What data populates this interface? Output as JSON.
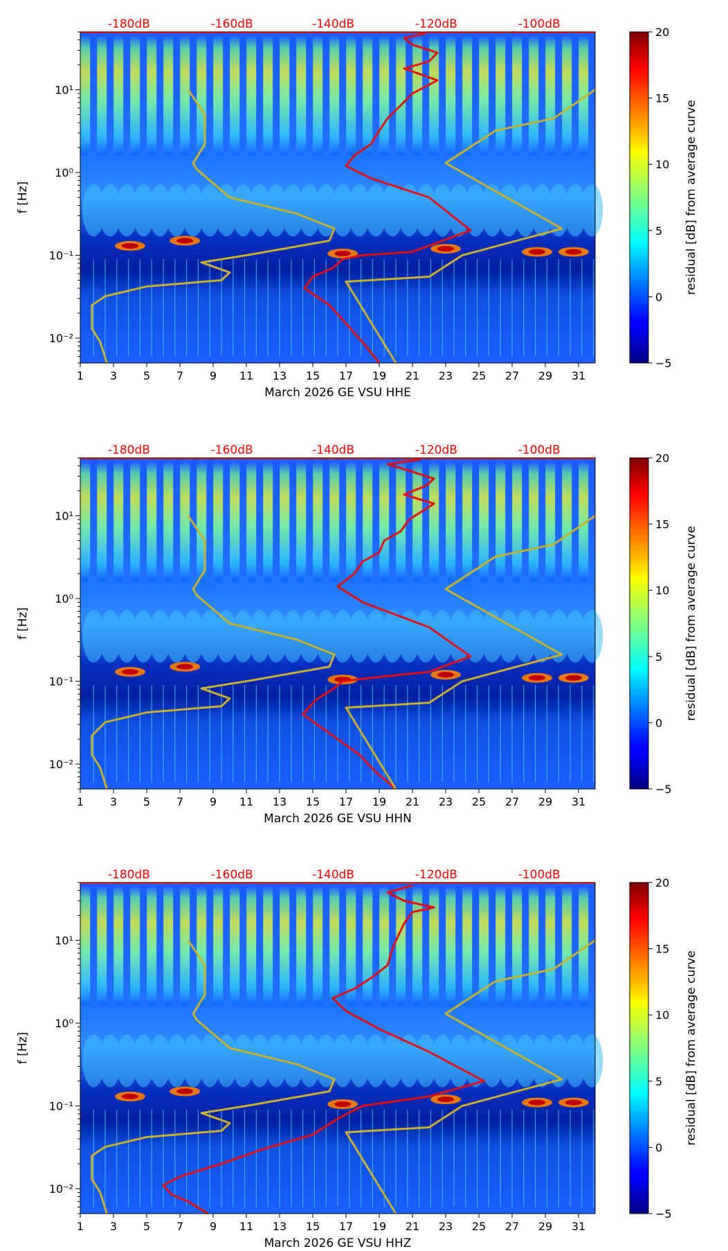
{
  "chart_data": [
    {
      "type": "heatmap",
      "xlabel": "March 2026 GE VSU  HHE",
      "ylabel": "f [Hz]",
      "colorbar_label": "residual [dB] from average curve",
      "colorbar_ticks": [
        -5,
        0,
        5,
        10,
        15,
        20
      ],
      "colorbar_range": [
        -5,
        20
      ],
      "x_ticks": [
        1,
        3,
        5,
        7,
        9,
        11,
        13,
        15,
        17,
        19,
        21,
        23,
        25,
        27,
        29,
        31
      ],
      "xlim": [
        1,
        32
      ],
      "y_ticks": [
        "10⁻²",
        "10⁻¹",
        "10⁰",
        "10¹"
      ],
      "ylim": [
        0.005,
        50
      ],
      "top_labels": [
        "-180dB",
        "-160dB",
        "-140dB",
        "-120dB",
        "-100dB"
      ],
      "series": [
        {
          "name": "red curve",
          "color": "#e01010",
          "points": [
            [
              19.0,
              0.005
            ],
            [
              18.2,
              0.008
            ],
            [
              17.0,
              0.015
            ],
            [
              16.0,
              0.025
            ],
            [
              14.5,
              0.04
            ],
            [
              15.0,
              0.055
            ],
            [
              16.2,
              0.07
            ],
            [
              16.8,
              0.09
            ],
            [
              18.0,
              0.1
            ],
            [
              21.0,
              0.11
            ],
            [
              24.5,
              0.2
            ],
            [
              22.0,
              0.5
            ],
            [
              18.5,
              0.85
            ],
            [
              17.0,
              1.2
            ],
            [
              17.5,
              1.6
            ],
            [
              18.5,
              2.2
            ],
            [
              19.0,
              3.2
            ],
            [
              19.5,
              4.5
            ],
            [
              20.3,
              6.5
            ],
            [
              21.0,
              9.0
            ],
            [
              22.5,
              13.0
            ],
            [
              20.5,
              18.0
            ],
            [
              22.0,
              22.0
            ],
            [
              22.5,
              28.0
            ],
            [
              21.0,
              35.0
            ],
            [
              20.5,
              42.0
            ],
            [
              21.8,
              48.0
            ]
          ]
        },
        {
          "name": "yellow curve",
          "color": "#c8b030",
          "points": [
            [
              2.6,
              0.005
            ],
            [
              2.2,
              0.009
            ],
            [
              1.7,
              0.013
            ],
            [
              1.7,
              0.025
            ],
            [
              2.5,
              0.032
            ],
            [
              5.0,
              0.042
            ],
            [
              9.5,
              0.05
            ],
            [
              10.0,
              0.062
            ],
            [
              8.3,
              0.082
            ],
            [
              11.0,
              0.1
            ],
            [
              16.0,
              0.15
            ],
            [
              16.3,
              0.21
            ],
            [
              14.0,
              0.32
            ],
            [
              10.0,
              0.5
            ],
            [
              8.0,
              1.1
            ],
            [
              7.8,
              1.3
            ],
            [
              8.5,
              2.2
            ],
            [
              8.5,
              5.0
            ],
            [
              7.5,
              10.0
            ],
            [
              20.0,
              0.005
            ],
            [
              17.0,
              0.048
            ],
            [
              22.0,
              0.055
            ],
            [
              24.0,
              0.1
            ],
            [
              30.0,
              0.21
            ],
            [
              23.0,
              1.3
            ],
            [
              26.0,
              3.2
            ],
            [
              29.5,
              4.5
            ],
            [
              32.0,
              10.0
            ]
          ]
        }
      ]
    },
    {
      "type": "heatmap",
      "xlabel": "March 2026 GE VSU  HHN",
      "ylabel": "f [Hz]",
      "colorbar_label": "residual [dB] from average curve",
      "colorbar_ticks": [
        -5,
        0,
        5,
        10,
        15,
        20
      ],
      "colorbar_range": [
        -5,
        20
      ],
      "x_ticks": [
        1,
        3,
        5,
        7,
        9,
        11,
        13,
        15,
        17,
        19,
        21,
        23,
        25,
        27,
        29,
        31
      ],
      "xlim": [
        1,
        32
      ],
      "y_ticks": [
        "10⁻²",
        "10⁻¹",
        "10⁰",
        "10¹"
      ],
      "ylim": [
        0.005,
        50
      ],
      "top_labels": [
        "-180dB",
        "-160dB",
        "-140dB",
        "-120dB",
        "-100dB"
      ],
      "series": [
        {
          "name": "red curve",
          "color": "#e01010",
          "points": [
            [
              20.0,
              0.005
            ],
            [
              18.8,
              0.008
            ],
            [
              17.8,
              0.013
            ],
            [
              16.5,
              0.02
            ],
            [
              14.4,
              0.04
            ],
            [
              15.2,
              0.06
            ],
            [
              16.2,
              0.08
            ],
            [
              16.8,
              0.1
            ],
            [
              18.5,
              0.11
            ],
            [
              22.0,
              0.13
            ],
            [
              24.5,
              0.2
            ],
            [
              22.0,
              0.45
            ],
            [
              18.0,
              0.9
            ],
            [
              16.5,
              1.4
            ],
            [
              17.5,
              2.0
            ],
            [
              18.0,
              2.8
            ],
            [
              19.0,
              3.6
            ],
            [
              19.3,
              5.0
            ],
            [
              20.3,
              6.5
            ],
            [
              20.8,
              9.0
            ],
            [
              22.3,
              14.0
            ],
            [
              20.5,
              18.0
            ],
            [
              21.8,
              23.0
            ],
            [
              22.3,
              28.0
            ],
            [
              20.8,
              35.0
            ],
            [
              19.5,
              42.0
            ],
            [
              21.5,
              48.0
            ]
          ]
        },
        {
          "name": "yellow curve",
          "color": "#c8b030",
          "points": [
            [
              2.6,
              0.005
            ],
            [
              2.2,
              0.009
            ],
            [
              1.7,
              0.013
            ],
            [
              1.7,
              0.022
            ],
            [
              2.5,
              0.032
            ],
            [
              5.0,
              0.042
            ],
            [
              9.5,
              0.05
            ],
            [
              10.0,
              0.062
            ],
            [
              8.3,
              0.082
            ],
            [
              11.0,
              0.1
            ],
            [
              16.0,
              0.15
            ],
            [
              16.3,
              0.21
            ],
            [
              14.0,
              0.32
            ],
            [
              10.0,
              0.5
            ],
            [
              8.0,
              1.1
            ],
            [
              7.8,
              1.3
            ],
            [
              8.5,
              2.2
            ],
            [
              8.5,
              5.0
            ],
            [
              7.5,
              10.0
            ],
            [
              20.0,
              0.005
            ],
            [
              17.0,
              0.048
            ],
            [
              22.0,
              0.055
            ],
            [
              24.0,
              0.1
            ],
            [
              30.0,
              0.21
            ],
            [
              23.0,
              1.3
            ],
            [
              26.0,
              3.2
            ],
            [
              29.5,
              4.5
            ],
            [
              32.0,
              10.0
            ]
          ]
        }
      ]
    },
    {
      "type": "heatmap",
      "xlabel": "March 2026 GE VSU  HHZ",
      "ylabel": "f [Hz]",
      "colorbar_label": "residual [dB] from average curve",
      "colorbar_ticks": [
        -5,
        0,
        5,
        10,
        15,
        20
      ],
      "colorbar_range": [
        -5,
        20
      ],
      "x_ticks": [
        1,
        3,
        5,
        7,
        9,
        11,
        13,
        15,
        17,
        19,
        21,
        23,
        25,
        27,
        29,
        31
      ],
      "xlim": [
        1,
        32
      ],
      "y_ticks": [
        "10⁻²",
        "10⁻¹",
        "10⁰",
        "10¹"
      ],
      "ylim": [
        0.005,
        50
      ],
      "top_labels": [
        "-180dB",
        "-160dB",
        "-140dB",
        "-120dB",
        "-100dB"
      ],
      "series": [
        {
          "name": "red curve",
          "color": "#e01010",
          "points": [
            [
              8.7,
              0.005
            ],
            [
              7.5,
              0.007
            ],
            [
              6.5,
              0.0085
            ],
            [
              6.0,
              0.011
            ],
            [
              7.0,
              0.014
            ],
            [
              9.5,
              0.02
            ],
            [
              12.0,
              0.03
            ],
            [
              15.0,
              0.045
            ],
            [
              16.5,
              0.07
            ],
            [
              18.0,
              0.1
            ],
            [
              22.0,
              0.13
            ],
            [
              25.3,
              0.2
            ],
            [
              22.0,
              0.45
            ],
            [
              19.0,
              0.85
            ],
            [
              17.0,
              1.4
            ],
            [
              16.2,
              2.0
            ],
            [
              17.5,
              2.6
            ],
            [
              18.5,
              3.5
            ],
            [
              19.5,
              5.0
            ],
            [
              19.8,
              8.0
            ],
            [
              20.2,
              12.0
            ],
            [
              20.5,
              16.0
            ],
            [
              21.0,
              22.0
            ],
            [
              22.3,
              25.0
            ],
            [
              20.5,
              30.0
            ],
            [
              19.5,
              38.0
            ],
            [
              21.0,
              46.0
            ]
          ]
        },
        {
          "name": "yellow curve",
          "color": "#c8b030",
          "points": [
            [
              2.6,
              0.005
            ],
            [
              2.2,
              0.009
            ],
            [
              1.7,
              0.013
            ],
            [
              1.7,
              0.025
            ],
            [
              2.5,
              0.032
            ],
            [
              5.0,
              0.042
            ],
            [
              9.5,
              0.05
            ],
            [
              10.0,
              0.062
            ],
            [
              8.3,
              0.082
            ],
            [
              11.0,
              0.1
            ],
            [
              16.0,
              0.15
            ],
            [
              16.3,
              0.21
            ],
            [
              14.0,
              0.32
            ],
            [
              10.0,
              0.5
            ],
            [
              8.0,
              1.1
            ],
            [
              7.8,
              1.3
            ],
            [
              8.5,
              2.2
            ],
            [
              8.5,
              5.0
            ],
            [
              7.5,
              10.0
            ],
            [
              20.0,
              0.005
            ],
            [
              17.0,
              0.048
            ],
            [
              22.0,
              0.055
            ],
            [
              24.0,
              0.1
            ],
            [
              30.0,
              0.21
            ],
            [
              23.0,
              1.3
            ],
            [
              26.0,
              3.2
            ],
            [
              29.5,
              4.5
            ],
            [
              32.0,
              10.0
            ]
          ]
        }
      ]
    }
  ]
}
